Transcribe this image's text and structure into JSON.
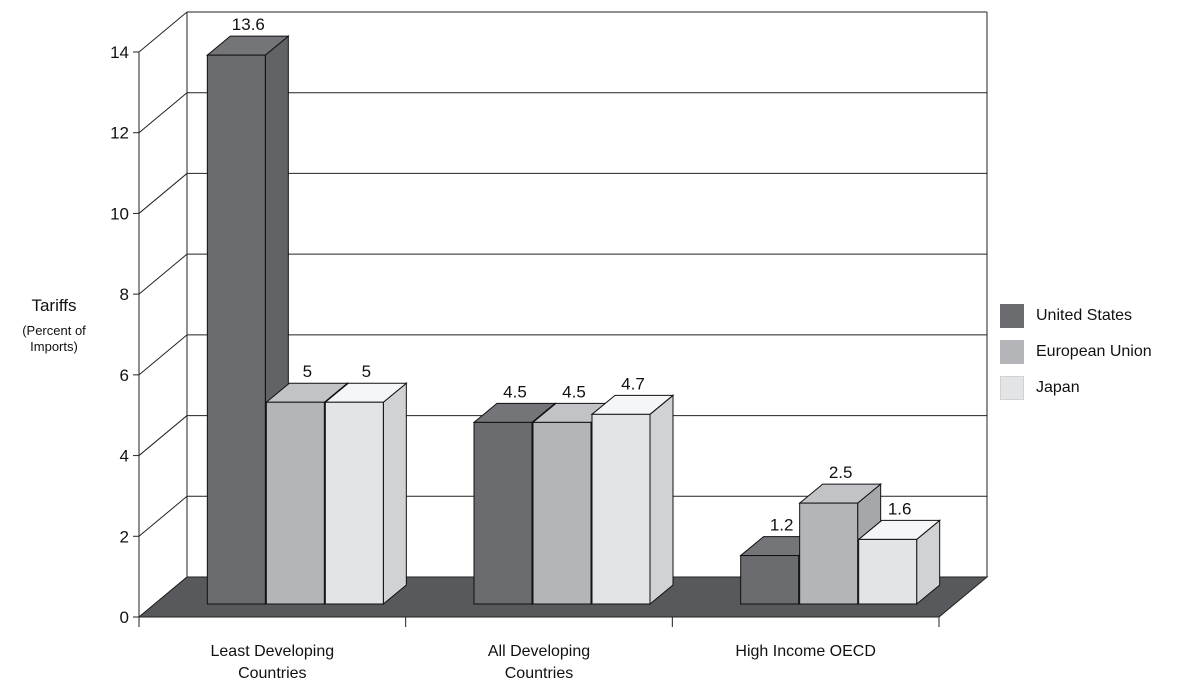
{
  "chart_data": {
    "type": "bar",
    "title": "",
    "xlabel": "",
    "ylabel": "Tariffs",
    "ylabel_sub": "(Percent of Imports)",
    "ylim": [
      0,
      14
    ],
    "yticks": [
      0,
      2,
      4,
      6,
      8,
      10,
      12,
      14
    ],
    "categories": [
      "Least Developing Countries",
      "All Developing Countries",
      "High Income OECD"
    ],
    "series": [
      {
        "name": "United States",
        "values": [
          13.6,
          4.5,
          1.2
        ],
        "color": "#6b6c70"
      },
      {
        "name": "European Union",
        "values": [
          5,
          4.5,
          2.5
        ],
        "color": "#b4b5b8"
      },
      {
        "name": "Japan",
        "values": [
          5,
          4.7,
          1.6
        ],
        "color": "#e3e4e6"
      }
    ],
    "grid": true,
    "legend_position": "right",
    "style": "3d"
  }
}
